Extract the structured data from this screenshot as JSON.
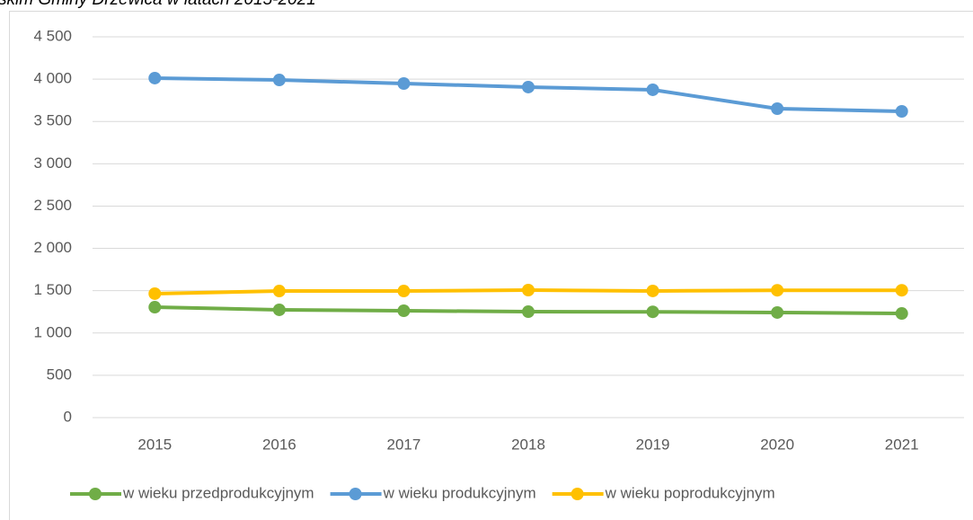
{
  "chart_data": {
    "type": "line",
    "title": "skim Gminy Drzewica w latach 2015-2021",
    "categories": [
      "2015",
      "2016",
      "2017",
      "2018",
      "2019",
      "2020",
      "2021"
    ],
    "series": [
      {
        "name": "w wieku przedprodukcyjnym",
        "color": "#70ad47",
        "values": [
          1305,
          1274,
          1263,
          1252,
          1250,
          1242,
          1231
        ]
      },
      {
        "name": "w wieku produkcyjnym",
        "color": "#5b9bd5",
        "values": [
          4012,
          3990,
          3948,
          3906,
          3874,
          3651,
          3619
        ]
      },
      {
        "name": "w wieku poprodukcyjnym",
        "color": "#ffc000",
        "values": [
          1465,
          1496,
          1496,
          1507,
          1497,
          1505,
          1505
        ]
      }
    ],
    "ylim": [
      0,
      4500
    ],
    "yticks": [
      0,
      500,
      {
        "value": 1000,
        "label": "1 000"
      },
      {
        "value": 1500,
        "label": "1 500"
      },
      {
        "value": 2000,
        "label": "2 000"
      },
      {
        "value": 2500,
        "label": "2 500"
      },
      {
        "value": 3000,
        "label": "3 000"
      },
      {
        "value": 3500,
        "label": "3 500"
      },
      {
        "value": 4000,
        "label": "4 000"
      },
      {
        "value": 4500,
        "label": "4 500"
      }
    ],
    "grid": true,
    "legend": "bottom"
  }
}
